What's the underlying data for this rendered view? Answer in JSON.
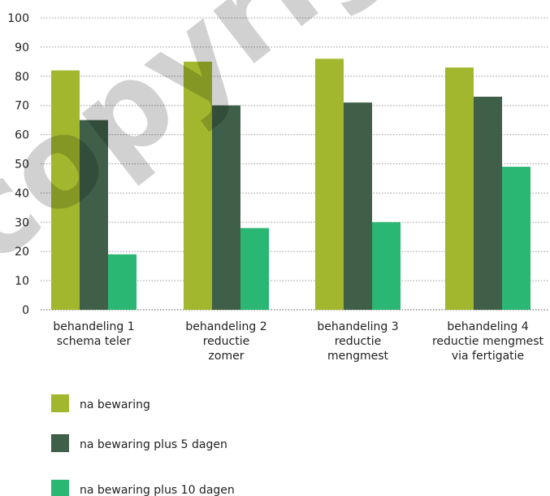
{
  "chart_data": {
    "type": "bar",
    "categories": [
      [
        "behandeling 1",
        "schema teler"
      ],
      [
        "behandeling 2",
        "reductie",
        "zomer"
      ],
      [
        "behandeling 3",
        "reductie",
        "mengmest"
      ],
      [
        "behandeling 4",
        "reductie mengmest",
        "via fertigatie"
      ]
    ],
    "series": [
      {
        "name": "na bewaring",
        "color": "#a2b72d",
        "values": [
          82,
          85,
          86,
          83
        ]
      },
      {
        "name": "na bewaring plus 5 dagen",
        "color": "#3f5f48",
        "values": [
          65,
          70,
          71,
          73
        ]
      },
      {
        "name": "na bewaring plus 10 dagen",
        "color": "#2ab673",
        "values": [
          19,
          28,
          30,
          49
        ]
      }
    ],
    "ylim": [
      0,
      100
    ],
    "yticks": [
      0,
      10,
      20,
      30,
      40,
      50,
      60,
      70,
      80,
      90,
      100
    ],
    "grid": true,
    "legend_position": "bottom-left",
    "title": "",
    "xlabel": "",
    "ylabel": ""
  },
  "watermark": "copyright"
}
